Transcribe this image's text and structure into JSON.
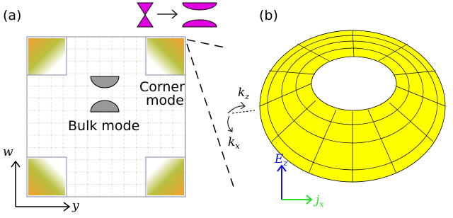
{
  "panel_a": {
    "label": "(a)",
    "corner_mode": [
      "Corner",
      "mode"
    ],
    "bulk_mode": "Bulk mode",
    "axis_vertical": "w",
    "axis_horizontal": "y"
  },
  "panel_b": {
    "label": "(b)",
    "k_z": {
      "symbol": "k",
      "subscript": "z"
    },
    "k_x": {
      "symbol": "k",
      "subscript": "x"
    },
    "e_z": {
      "symbol": "E",
      "subscript": "z"
    },
    "j_x": {
      "symbol": "j",
      "subscript": "x"
    }
  }
}
